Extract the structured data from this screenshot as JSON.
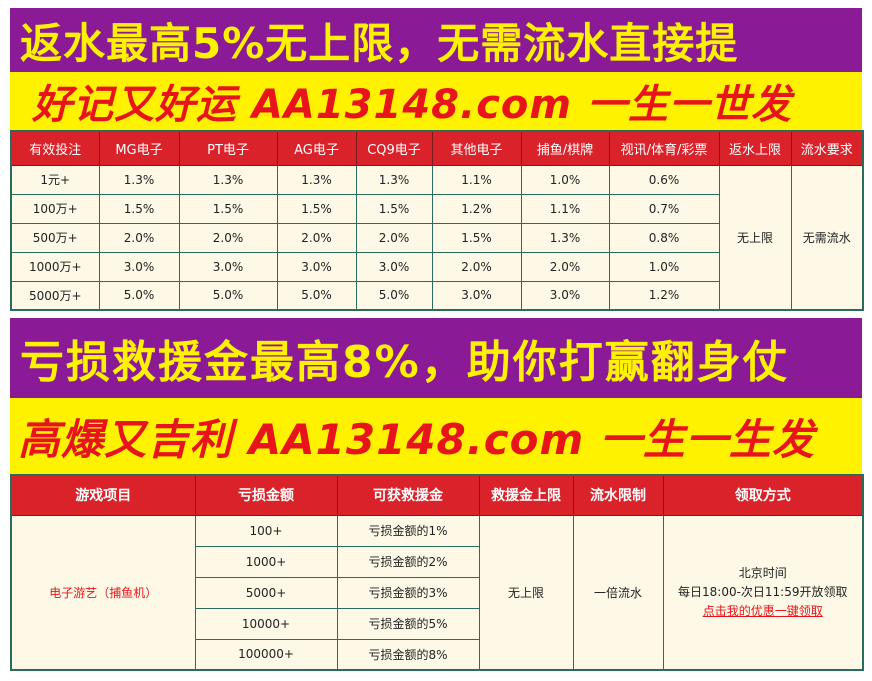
{
  "panel1": {
    "banner_title": "返水最高5%无上限，无需流水直接提",
    "banner_slogan": "好记又好运 AA13148.com 一生一世发",
    "headers": [
      "有效投注",
      "MG电子",
      "PT电子",
      "AG电子",
      "CQ9电子",
      "其他电子",
      "捕鱼/棋牌",
      "视讯/体育/彩票",
      "返水上限",
      "流水要求"
    ],
    "rows": [
      [
        "1元+",
        "1.3%",
        "1.3%",
        "1.3%",
        "1.3%",
        "1.1%",
        "1.0%",
        "0.6%"
      ],
      [
        "100万+",
        "1.5%",
        "1.5%",
        "1.5%",
        "1.5%",
        "1.2%",
        "1.1%",
        "0.7%"
      ],
      [
        "500万+",
        "2.0%",
        "2.0%",
        "2.0%",
        "2.0%",
        "1.5%",
        "1.3%",
        "0.8%"
      ],
      [
        "1000万+",
        "3.0%",
        "3.0%",
        "3.0%",
        "3.0%",
        "2.0%",
        "2.0%",
        "1.0%"
      ],
      [
        "5000万+",
        "5.0%",
        "5.0%",
        "5.0%",
        "5.0%",
        "3.0%",
        "3.0%",
        "1.2%"
      ]
    ],
    "rebate_cap": "无上限",
    "turnover_req": "无需流水"
  },
  "panel2": {
    "banner_title": "亏损救援金最高8%，助你打赢翻身仗",
    "banner_slogan": "高爆又吉利 AA13148.com 一生一生发",
    "headers": [
      "游戏项目",
      "亏损金额",
      "可获救援金",
      "救援金上限",
      "流水限制",
      "领取方式"
    ],
    "game": "电子游艺（捕鱼机）",
    "rows": [
      [
        "100+",
        "亏损金额的1%"
      ],
      [
        "1000+",
        "亏损金额的2%"
      ],
      [
        "5000+",
        "亏损金额的3%"
      ],
      [
        "10000+",
        "亏损金额的5%"
      ],
      [
        "100000+",
        "亏损金额的8%"
      ]
    ],
    "rescue_cap": "无上限",
    "turnover_limit": "一倍流水",
    "claim_line1": "北京时间",
    "claim_line2": "每日18:00-次日11:59开放领取",
    "claim_link": "点击我的优惠一键领取"
  },
  "colors": {
    "purple_banner": "#8b1a96",
    "yellow_banner": "#fff200",
    "header_red": "#d9222a",
    "cell_bg": "#fdf9e6",
    "accent_red": "#e8141c"
  }
}
